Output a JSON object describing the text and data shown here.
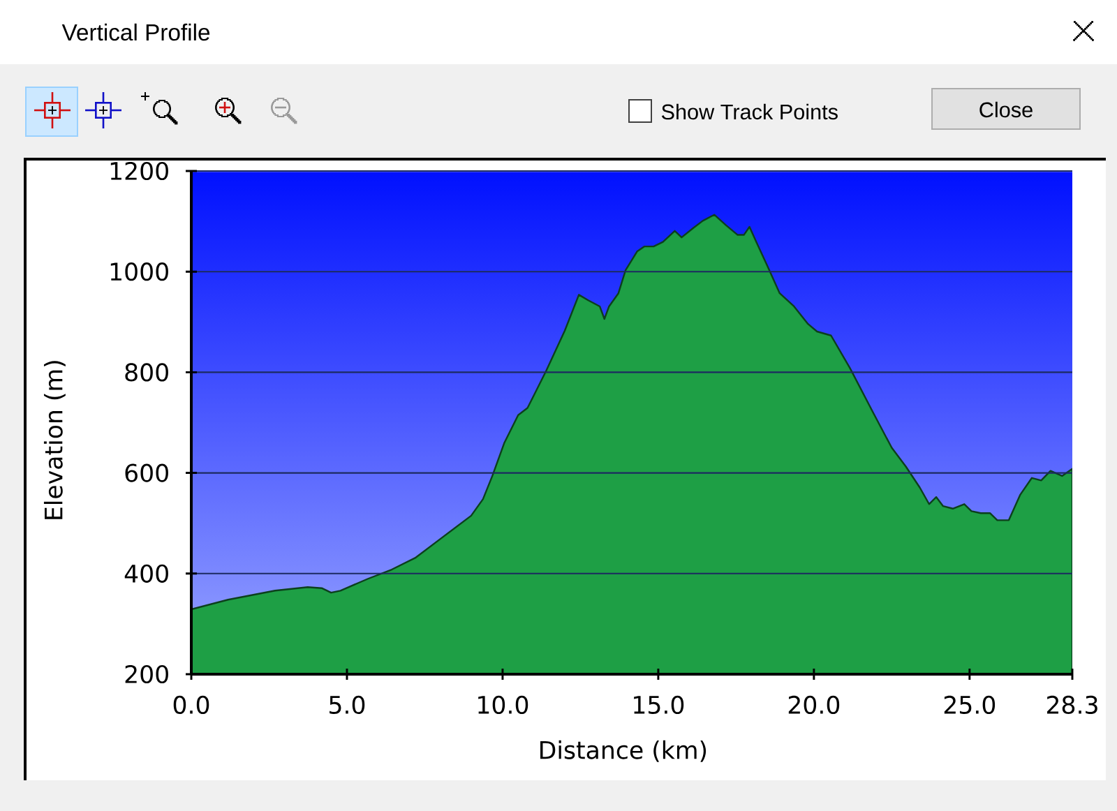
{
  "chart_data": {
    "type": "area",
    "title": "Vertical Profile",
    "xlabel": "Distance (km)",
    "ylabel": "Elevation (m)",
    "x": [
      0.0,
      1.18,
      2.69,
      3.74,
      4.19,
      4.49,
      4.79,
      5.69,
      6.44,
      7.19,
      8.09,
      8.99,
      9.37,
      9.67,
      10.05,
      10.5,
      10.8,
      11.4,
      12.0,
      12.45,
      12.75,
      13.12,
      13.27,
      13.42,
      13.72,
      13.95,
      14.32,
      14.55,
      14.85,
      15.15,
      15.53,
      15.75,
      16.13,
      16.43,
      16.8,
      17.18,
      17.55,
      17.75,
      17.93,
      18.15,
      18.53,
      18.9,
      19.36,
      19.81,
      20.1,
      20.55,
      21.16,
      21.9,
      22.5,
      22.95,
      23.4,
      23.7,
      23.93,
      24.15,
      24.46,
      24.83,
      25.06,
      25.36,
      25.66,
      25.89,
      26.26,
      26.63,
      27.0,
      27.3,
      27.6,
      27.97,
      28.3
    ],
    "series": [
      {
        "color": "#1e9f45",
        "values": [
          329,
          348,
          366,
          373,
          371,
          362,
          366,
          390,
          408,
          431,
          473,
          515,
          548,
          594,
          659,
          715,
          729,
          803,
          883,
          954,
          943,
          931,
          906,
          931,
          957,
          1003,
          1040,
          1050,
          1050,
          1059,
          1081,
          1068,
          1087,
          1101,
          1113,
          1092,
          1073,
          1073,
          1089,
          1059,
          1008,
          957,
          931,
          896,
          881,
          873,
          808,
          720,
          650,
          613,
          571,
          538,
          552,
          534,
          529,
          538,
          524,
          520,
          520,
          506,
          506,
          557,
          590,
          585,
          604,
          594,
          608
        ]
      }
    ],
    "xlim": [
      0,
      28.3
    ],
    "ylim": [
      200,
      1200
    ],
    "xticks": [
      {
        "value": 0,
        "label": "0.0"
      },
      {
        "value": 5,
        "label": "5.0"
      },
      {
        "value": 10,
        "label": "10.0"
      },
      {
        "value": 15,
        "label": "15.0"
      },
      {
        "value": 20,
        "label": "20.0"
      },
      {
        "value": 25,
        "label": "25.0"
      },
      {
        "value": 28.3,
        "label": "28.3"
      }
    ],
    "yticks": [
      200,
      400,
      600,
      800,
      1000,
      1200
    ],
    "grid": "y",
    "annotations": [
      "Show Track Points",
      "Close"
    ]
  }
}
